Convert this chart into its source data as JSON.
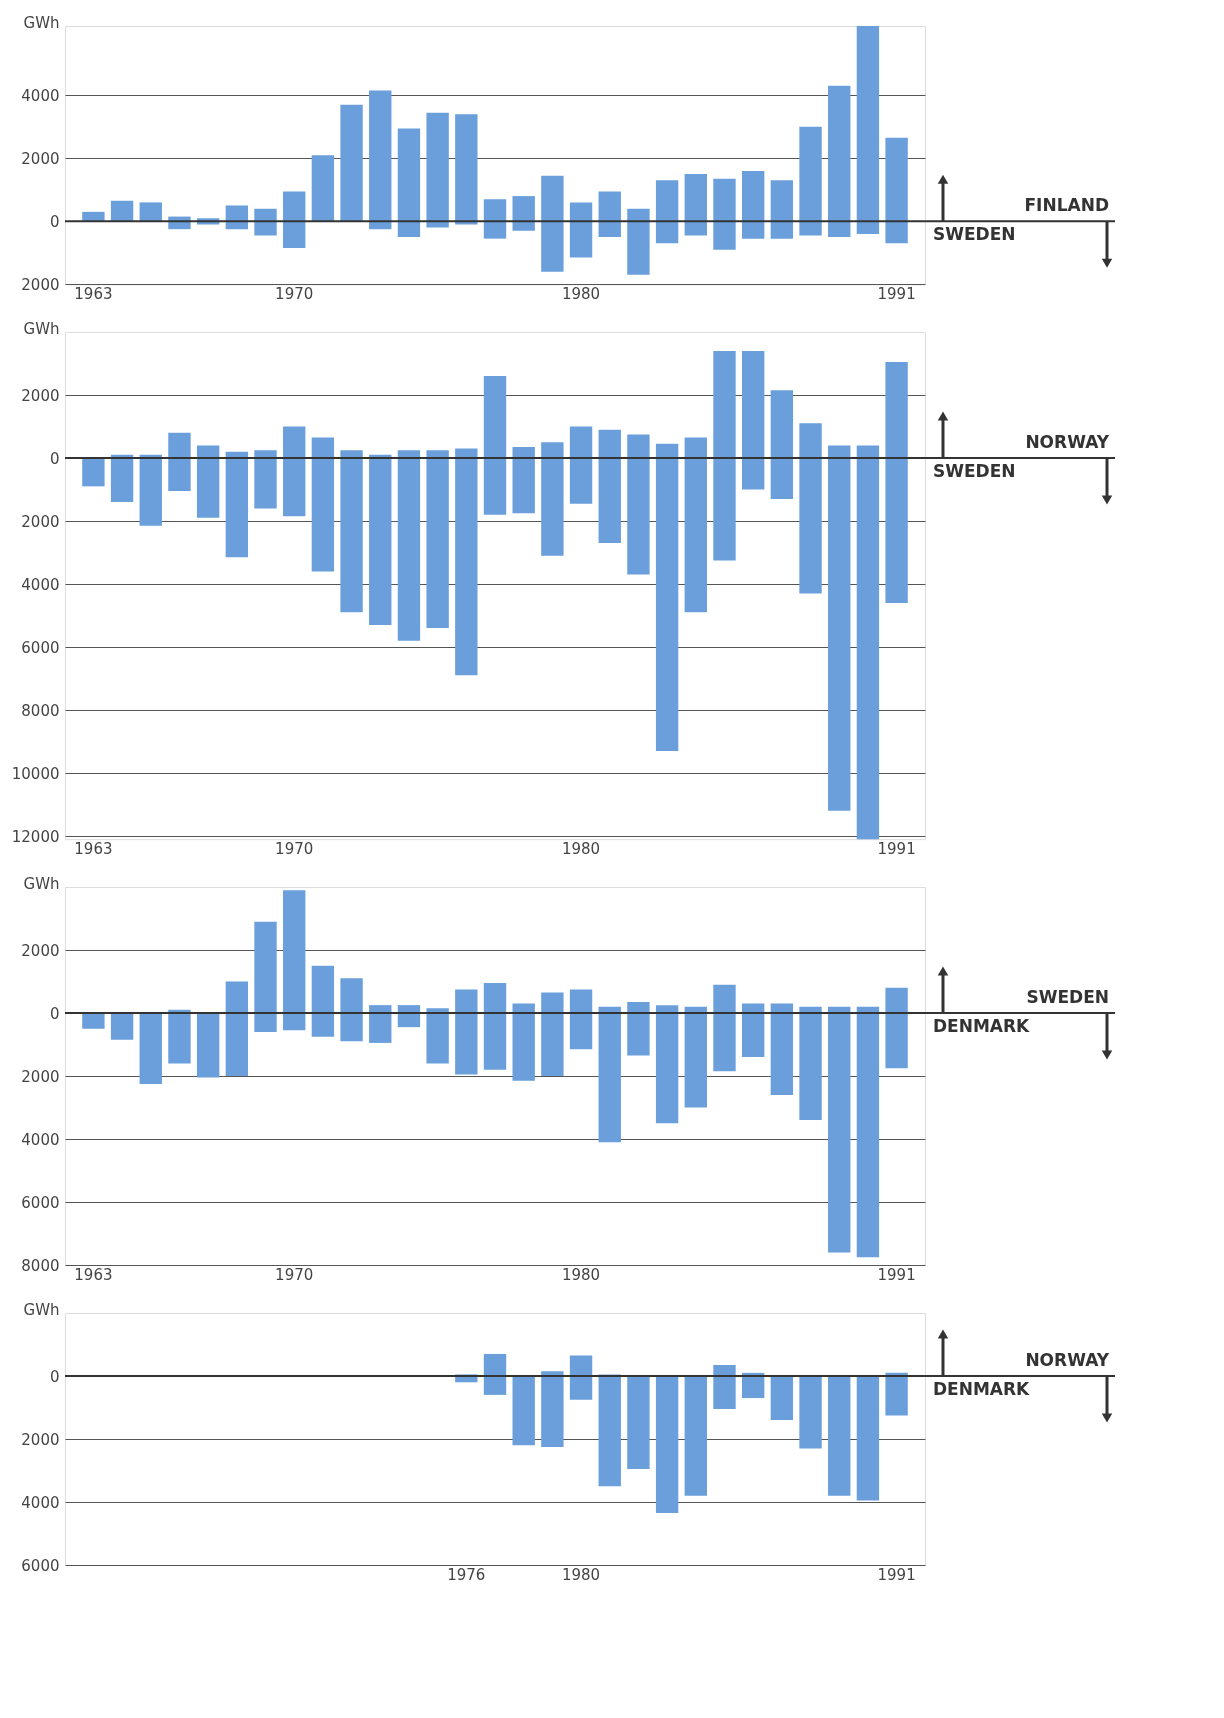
{
  "chart_data": [
    {
      "type": "bar",
      "ylabel": "GWh",
      "color": "#6a9fdb",
      "categories": [
        "1963",
        null,
        null,
        null,
        null,
        null,
        null,
        "1970",
        null,
        null,
        null,
        null,
        null,
        null,
        null,
        null,
        null,
        "1980",
        null,
        null,
        null,
        null,
        null,
        null,
        null,
        null,
        null,
        null,
        "1991"
      ],
      "values": [
        300,
        650,
        600,
        400,
        200,
        750,
        850,
        1800,
        2100,
        3700,
        4400,
        3450,
        3650,
        3500,
        1250,
        1100,
        3050,
        1750,
        1450,
        2100,
        2000,
        1950,
        2250,
        2150,
        1850,
        3450,
        4800,
        6600,
        3350
      ],
      "base": [
        0,
        0,
        0,
        -250,
        -100,
        -250,
        -450,
        -850,
        0,
        0,
        -250,
        -500,
        -200,
        -100,
        -550,
        -300,
        -1600,
        -1150,
        -500,
        -1700,
        -700,
        -450,
        -900,
        -550,
        -550,
        -450,
        -500,
        -400,
        -700
      ],
      "ylim": [
        -2000,
        6200
      ],
      "yticks": [
        4000,
        2000,
        0,
        {
          "value": -2000,
          "label": "2000"
        }
      ],
      "grid": "y",
      "ref_lines": [
        {
          "axis": "y",
          "value": 0
        }
      ],
      "annotations": [
        "FINLAND",
        "SWEDEN"
      ]
    },
    {
      "type": "bar",
      "ylabel": "GWh",
      "color": "#6a9fdb",
      "categories": [
        "1963",
        null,
        null,
        null,
        null,
        null,
        null,
        "1970",
        null,
        null,
        null,
        null,
        null,
        null,
        null,
        null,
        null,
        "1980",
        null,
        null,
        null,
        null,
        null,
        null,
        null,
        null,
        null,
        null,
        "1991"
      ],
      "values": [
        900,
        1500,
        2250,
        1850,
        2300,
        3350,
        1850,
        2850,
        4250,
        5150,
        5400,
        6050,
        5650,
        7200,
        4400,
        2100,
        3600,
        2450,
        3600,
        4450,
        9750,
        5550,
        6650,
        4400,
        3450,
        5400,
        11600,
        12500,
        7650
      ],
      "base": [
        -900,
        -1400,
        -2150,
        -1050,
        -1900,
        -3150,
        -1600,
        -1850,
        -3600,
        -4900,
        -5300,
        -5800,
        -5400,
        -6900,
        -1800,
        -1750,
        -3100,
        -1450,
        -2700,
        -3700,
        -9300,
        -4900,
        -3250,
        -1000,
        -1300,
        -4300,
        -11200,
        -12100,
        -4600
      ],
      "ylim": [
        -12100,
        4000
      ],
      "yticks": [
        2000,
        0,
        {
          "value": -2000,
          "label": "2000"
        },
        {
          "value": -4000,
          "label": "4000"
        },
        {
          "value": -6000,
          "label": "6000"
        },
        {
          "value": -8000,
          "label": "8000"
        },
        {
          "value": -10000,
          "label": "10000"
        },
        {
          "value": -12000,
          "label": "12000"
        }
      ],
      "grid": "y",
      "ref_lines": [
        {
          "axis": "y",
          "value": 0
        }
      ],
      "annotations": [
        "NORWAY",
        "SWEDEN"
      ]
    },
    {
      "type": "bar",
      "ylabel": "GWh",
      "color": "#6a9fdb",
      "categories": [
        "1963",
        null,
        null,
        null,
        null,
        null,
        null,
        "1970",
        null,
        null,
        null,
        null,
        null,
        null,
        null,
        null,
        null,
        "1980",
        null,
        null,
        null,
        null,
        null,
        null,
        null,
        null,
        null,
        null,
        "1991"
      ],
      "values": [
        500,
        850,
        2250,
        1700,
        2050,
        3000,
        3500,
        4450,
        2250,
        2000,
        1200,
        700,
        1750,
        2700,
        2750,
        2450,
        2650,
        1900,
        4300,
        1700,
        3750,
        3200,
        2750,
        1700,
        2900,
        3600,
        7800,
        7950,
        2550
      ],
      "base": [
        -500,
        -850,
        -2250,
        -1600,
        -2050,
        -2000,
        -600,
        -550,
        -750,
        -900,
        -950,
        -450,
        -1600,
        -1950,
        -1800,
        -2150,
        -2000,
        -1150,
        -4100,
        -1350,
        -3500,
        -3000,
        -1850,
        -1400,
        -2600,
        -3400,
        -7600,
        -7750,
        -1750
      ],
      "ylim": [
        -8000,
        4000
      ],
      "yticks": [
        2000,
        0,
        {
          "value": -2000,
          "label": "2000"
        },
        {
          "value": -4000,
          "label": "4000"
        },
        {
          "value": -6000,
          "label": "6000"
        },
        {
          "value": -8000,
          "label": "8000"
        }
      ],
      "grid": "y",
      "ref_lines": [
        {
          "axis": "y",
          "value": 0
        }
      ],
      "annotations": [
        "SWEDEN",
        "DENMARK"
      ]
    },
    {
      "type": "bar",
      "ylabel": "GWh",
      "color": "#6a9fdb",
      "categories": [
        null,
        null,
        null,
        null,
        null,
        null,
        null,
        null,
        null,
        null,
        null,
        null,
        null,
        "1976",
        null,
        null,
        null,
        "1980",
        null,
        null,
        null,
        null,
        null,
        null,
        null,
        null,
        null,
        null,
        "1991"
      ],
      "values": [
        null,
        null,
        null,
        null,
        null,
        null,
        null,
        null,
        null,
        null,
        null,
        null,
        null,
        250,
        1300,
        2200,
        2400,
        1400,
        3550,
        2950,
        4350,
        3800,
        1400,
        800,
        1400,
        2300,
        3800,
        3950,
        1350
      ],
      "base": [
        null,
        null,
        null,
        null,
        null,
        null,
        null,
        null,
        null,
        null,
        null,
        null,
        null,
        -200,
        -600,
        -2200,
        -2250,
        -750,
        -3500,
        -2950,
        -4350,
        -3800,
        -1050,
        -700,
        -1400,
        -2300,
        -3800,
        -3950,
        -1250
      ],
      "ylim": [
        -6000,
        2000
      ],
      "yticks": [
        0,
        {
          "value": -2000,
          "label": "2000"
        },
        {
          "value": -4000,
          "label": "4000"
        },
        {
          "value": -6000,
          "label": "6000"
        }
      ],
      "grid": "y",
      "ref_lines": [
        {
          "axis": "y",
          "value": 0
        }
      ],
      "annotations": [
        "NORWAY",
        "DENMARK"
      ]
    }
  ]
}
